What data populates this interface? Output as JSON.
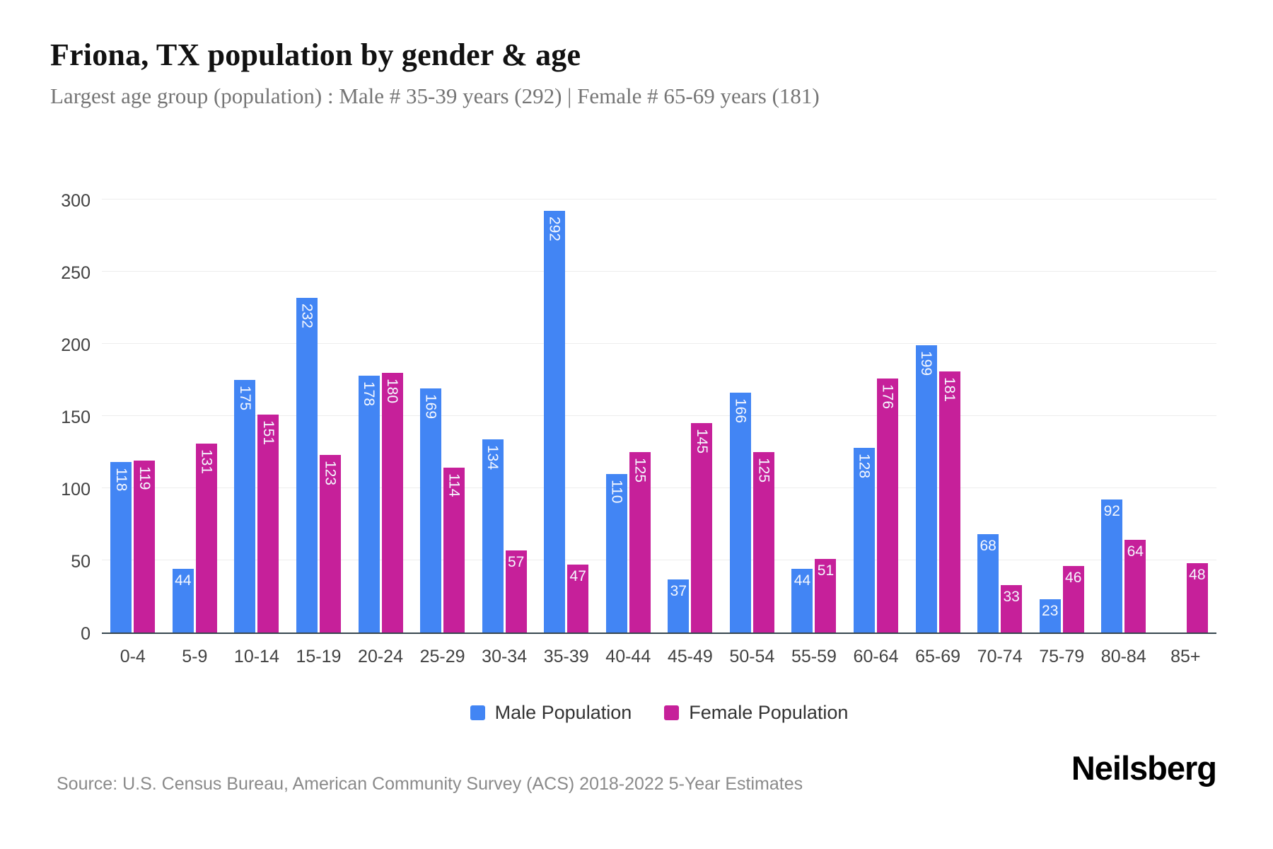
{
  "header": {
    "title": "Friona, TX population by gender & age",
    "subtitle": "Largest age group (population) : Male # 35-39 years (292) | Female # 65-69 years (181)"
  },
  "chart_data": {
    "type": "bar",
    "title": "Friona, TX population by gender & age",
    "categories": [
      "0-4",
      "5-9",
      "10-14",
      "15-19",
      "20-24",
      "25-29",
      "30-34",
      "35-39",
      "40-44",
      "45-49",
      "50-54",
      "55-59",
      "60-64",
      "65-69",
      "70-74",
      "75-79",
      "80-84",
      "85+"
    ],
    "series": [
      {
        "name": "Male Population",
        "color": "#4285F4",
        "values": [
          118,
          44,
          175,
          232,
          178,
          169,
          134,
          292,
          110,
          37,
          166,
          44,
          128,
          199,
          68,
          23,
          92,
          0
        ]
      },
      {
        "name": "Female Population",
        "color": "#C6209A",
        "values": [
          119,
          131,
          151,
          123,
          180,
          114,
          57,
          47,
          125,
          145,
          125,
          51,
          176,
          181,
          33,
          46,
          64,
          48
        ]
      }
    ],
    "xlabel": "",
    "ylabel": "",
    "ylim": [
      0,
      300
    ],
    "yticks": [
      0,
      50,
      100,
      150,
      200,
      250,
      300
    ],
    "grid": "horizontal",
    "legend_position": "bottom",
    "bar_label_color": "#ffffff",
    "axis_line_color": "#37474f",
    "gridline_color": "#ededed"
  },
  "footer": {
    "source": "Source: U.S. Census Bureau, American Community Survey (ACS) 2018-2022 5-Year Estimates",
    "brand": "Neilsberg"
  }
}
